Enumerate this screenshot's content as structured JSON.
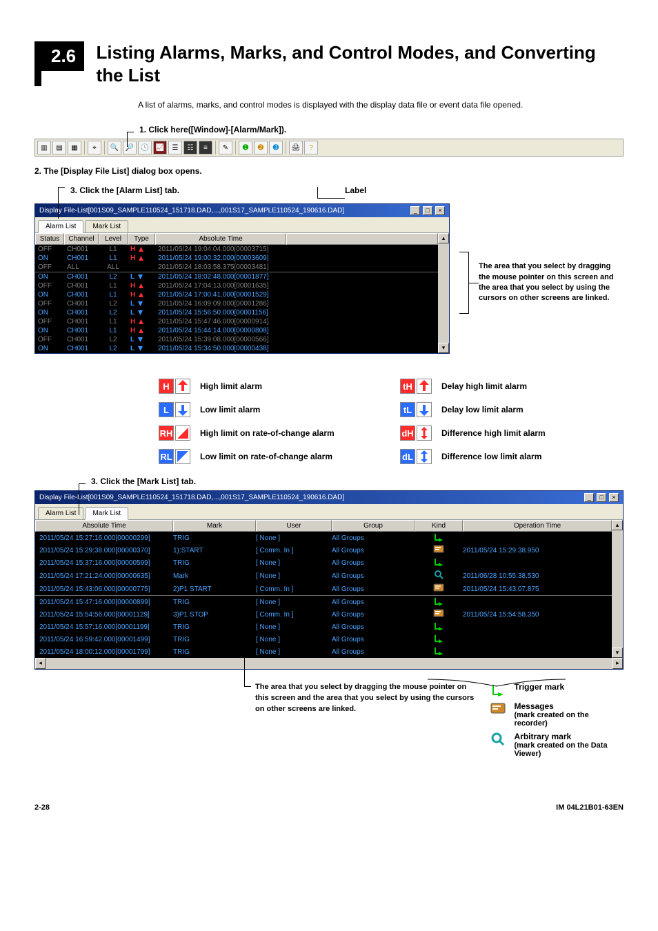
{
  "section": {
    "number": "2.6",
    "title": "Listing Alarms, Marks, and Control Modes, and Converting the List"
  },
  "intro": "A list of alarms, marks, and control modes is displayed with the display data file or event data file opened.",
  "steps": {
    "s1": "1. Click here([Window]-[Alarm/Mark]).",
    "s2": "2. The [Display File List] dialog box opens.",
    "s3a": "3. Click the [Alarm List] tab.",
    "s3b": "3. Click the [Mark List] tab.",
    "label": "Label"
  },
  "dialog1": {
    "title": "Display File-List[001S09_SAMPLE110524_151718.DAD,...,001S17_SAMPLE110524_190616.DAD]",
    "tabs": {
      "alarm": "Alarm List",
      "mark": "Mark List"
    },
    "headers": {
      "status": "Status",
      "channel": "Channel",
      "level": "Level",
      "type": "Type",
      "time": "Absolute Time"
    }
  },
  "alarm_rows": [
    {
      "s": "OFF",
      "ch": "CH001",
      "lv": "L1",
      "tL": "H",
      "tc": "#ff3030",
      "arr": "up",
      "t": "2011/05/24 19:04:04.000[00003715]"
    },
    {
      "s": "ON",
      "ch": "CH001",
      "lv": "L1",
      "tL": "H",
      "tc": "#ff3030",
      "arr": "up",
      "t": "2011/05/24 19:00:32.000[00003609]"
    },
    {
      "s": "OFF",
      "ch": "ALL",
      "lv": "ALL",
      "tL": "",
      "tc": "",
      "arr": "",
      "t": "2011/05/24 18:03:58.375[00003481]"
    },
    {
      "s": "ON",
      "ch": "CH001",
      "lv": "L2",
      "tL": "L",
      "tc": "#3894ff",
      "arr": "down",
      "t": "2011/05/24 18:02:48.000[00001877]"
    },
    {
      "s": "OFF",
      "ch": "CH001",
      "lv": "L1",
      "tL": "H",
      "tc": "#ff3030",
      "arr": "up",
      "t": "2011/05/24 17:04:13.000[00001635]"
    },
    {
      "s": "ON",
      "ch": "CH001",
      "lv": "L1",
      "tL": "H",
      "tc": "#ff3030",
      "arr": "up",
      "t": "2011/05/24 17:00:41.000[00001529]"
    },
    {
      "s": "OFF",
      "ch": "CH001",
      "lv": "L2",
      "tL": "L",
      "tc": "#3894ff",
      "arr": "down",
      "t": "2011/05/24 16:09:09.000[00001286]"
    },
    {
      "s": "ON",
      "ch": "CH001",
      "lv": "L2",
      "tL": "L",
      "tc": "#3894ff",
      "arr": "down",
      "t": "2011/05/24 15:56:50.000[00001156]"
    },
    {
      "s": "OFF",
      "ch": "CH001",
      "lv": "L1",
      "tL": "H",
      "tc": "#ff3030",
      "arr": "up",
      "t": "2011/05/24 15:47:46.000[00000914]"
    },
    {
      "s": "ON",
      "ch": "CH001",
      "lv": "L1",
      "tL": "H",
      "tc": "#ff3030",
      "arr": "up",
      "t": "2011/05/24 15:44:14.000[00000808]"
    },
    {
      "s": "OFF",
      "ch": "CH001",
      "lv": "L2",
      "tL": "L",
      "tc": "#3894ff",
      "arr": "down",
      "t": "2011/05/24 15:39:08.000[00000566]"
    },
    {
      "s": "ON",
      "ch": "CH001",
      "lv": "L2",
      "tL": "L",
      "tc": "#3894ff",
      "arr": "down",
      "t": "2011/05/24 15:34:50.000[00000438]"
    }
  ],
  "dialog2": {
    "title": "Display File-List[001S09_SAMPLE110524_151718.DAD,...,001S17_SAMPLE110524_190616.DAD]",
    "headers": {
      "time": "Absolute Time",
      "mark": "Mark",
      "user": "User",
      "group": "Group",
      "kind": "Kind",
      "op": "Operation Time"
    }
  },
  "mark_rows": [
    {
      "t": "2011/05/24 15:27:16.000[00000299]",
      "m": "TRIG",
      "u": "[ None ]",
      "g": "All Groups",
      "k": "trig",
      "op": ""
    },
    {
      "t": "2011/05/24 15:29:38.000[00000370]",
      "m": "1):START",
      "u": "[ Comm. In ]",
      "g": "All Groups",
      "k": "msg",
      "op": "2011/05/24 15:29:38.950"
    },
    {
      "t": "2011/05/24 15:37:16.000[00000599]",
      "m": "TRIG",
      "u": "[ None ]",
      "g": "All Groups",
      "k": "trig",
      "op": ""
    },
    {
      "t": "2011/05/24 17:21:24.000[00000635]",
      "m": "Mark",
      "u": "[ None ]",
      "g": "All Groups",
      "k": "arb",
      "op": "2011/06/28 10:55:38.530"
    },
    {
      "t": "2011/05/24 15:43:06.000[00000775]",
      "m": "2)P1 START",
      "u": "[ Comm. In ]",
      "g": "All Groups",
      "k": "msg",
      "op": "2011/05/24 15:43:07.875"
    },
    {
      "t": "2011/05/24 15:47:16.000[00000899]",
      "m": "TRIG",
      "u": "[ None ]",
      "g": "All Groups",
      "k": "trig",
      "op": ""
    },
    {
      "t": "2011/05/24 15:54:56.000[00001129]",
      "m": "3)P1 STOP",
      "u": "[ Comm. In ]",
      "g": "All Groups",
      "k": "msg",
      "op": "2011/05/24 15:54:58.350"
    },
    {
      "t": "2011/05/24 15:57:16.000[00001199]",
      "m": "TRIG",
      "u": "[ None ]",
      "g": "All Groups",
      "k": "trig",
      "op": ""
    },
    {
      "t": "2011/05/24 16:59:42.000[00001499]",
      "m": "TRIG",
      "u": "[ None ]",
      "g": "All Groups",
      "k": "trig",
      "op": ""
    },
    {
      "t": "2011/05/24 18:00:12.000[00001799]",
      "m": "TRIG",
      "u": "[ None ]",
      "g": "All Groups",
      "k": "trig",
      "op": ""
    }
  ],
  "alarm_legend": [
    [
      {
        "l": "H",
        "bg": "#ff2a2a",
        "ic": "up",
        "ic_c": "#ff2a2a",
        "lbl": "High limit alarm"
      },
      {
        "l": "tH",
        "bg": "#ff2a2a",
        "ic": "up",
        "ic_c": "#ff2a2a",
        "lbl": "Delay high limit alarm"
      }
    ],
    [
      {
        "l": "L",
        "bg": "#2a6cff",
        "ic": "down",
        "ic_c": "#2a6cff",
        "lbl": "Low limit alarm"
      },
      {
        "l": "tL",
        "bg": "#2a6cff",
        "ic": "down",
        "ic_c": "#2a6cff",
        "lbl": "Delay low limit alarm"
      }
    ],
    [
      {
        "l": "RH",
        "bg": "#ff2a2a",
        "ic": "tri-up",
        "ic_c": "#ff2a2a",
        "lbl": "High limit on rate-of-change alarm"
      },
      {
        "l": "dH",
        "bg": "#ff2a2a",
        "ic": "diff",
        "ic_c": "#ff2a2a",
        "lbl": "Difference high limit alarm"
      }
    ],
    [
      {
        "l": "RL",
        "bg": "#2a6cff",
        "ic": "tri-down",
        "ic_c": "#2a6cff",
        "lbl": "Low limit on rate-of-change alarm"
      },
      {
        "l": "dL",
        "bg": "#2a6cff",
        "ic": "diff",
        "ic_c": "#2a6cff",
        "lbl": "Difference low limit alarm"
      }
    ]
  ],
  "side_note": "The area that you select by dragging the mouse pointer on this screen and the area that you select by using the cursors on other screens are linked.",
  "side_note_b": "The area that you select by dragging the mouse pointer on this screen and the area that you select by using the cursors on other screens are linked.",
  "kind_legend": {
    "trig": {
      "name": "Trigger mark"
    },
    "msg": {
      "name": "Messages",
      "sub": "(mark created on the recorder)"
    },
    "arb": {
      "name": "Arbitrary mark",
      "sub": "(mark created on the Data Viewer)"
    }
  },
  "footer": {
    "page": "2-28",
    "code": "IM 04L21B01-63EN"
  },
  "colors": {
    "title_blue": "#4aa3ff",
    "off_gray": "#808080",
    "on_blue": "#4aa3ff"
  }
}
